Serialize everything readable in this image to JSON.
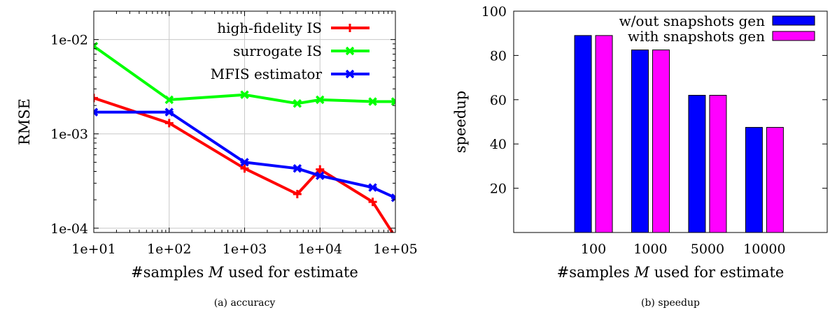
{
  "chart_data": [
    {
      "type": "line",
      "caption": "(a) accuracy",
      "xlabel": "#samples M used for estimate",
      "ylabel": "RMSE",
      "xscale": "log",
      "yscale": "log",
      "xlim": [
        10,
        100000
      ],
      "ylim": [
        9e-05,
        0.02
      ],
      "grid": true,
      "legend_position": "top-right",
      "xticks": [
        10,
        100,
        1000,
        10000,
        100000
      ],
      "xtick_labels": [
        "1e+01",
        "1e+02",
        "1e+03",
        "1e+04",
        "1e+05"
      ],
      "yticks": [
        0.0001,
        0.001,
        0.01
      ],
      "ytick_labels": [
        "1e-04",
        "1e-03",
        "1e-02"
      ],
      "series": [
        {
          "name": "high-fidelity IS",
          "color": "#ff0000",
          "x": [
            10,
            100,
            1000,
            5000,
            10000,
            50000,
            100000
          ],
          "y": [
            0.0024,
            0.0013,
            0.00043,
            0.00023,
            0.00042,
            0.00019,
            8e-05
          ]
        },
        {
          "name": "surrogate IS",
          "color": "#00ff00",
          "x": [
            10,
            100,
            1000,
            5000,
            10000,
            50000,
            100000
          ],
          "y": [
            0.0085,
            0.0023,
            0.0026,
            0.0021,
            0.0023,
            0.0022,
            0.0022
          ]
        },
        {
          "name": "MFIS estimator",
          "color": "#0000ff",
          "x": [
            10,
            100,
            1000,
            5000,
            10000,
            50000,
            100000
          ],
          "y": [
            0.0017,
            0.0017,
            0.0005,
            0.00043,
            0.00036,
            0.00027,
            0.00021
          ]
        }
      ]
    },
    {
      "type": "bar",
      "caption": "(b) speedup",
      "xlabel": "#samples M used for estimate",
      "ylabel": "speedup",
      "ylim": [
        0,
        100
      ],
      "yticks": [
        20,
        40,
        60,
        80,
        100
      ],
      "categories": [
        "100",
        "1000",
        "5000",
        "10000"
      ],
      "legend_position": "top-right",
      "series": [
        {
          "name": "w/out snapshots gen",
          "color": "#0000ff",
          "values": [
            89,
            82.5,
            62,
            47.5
          ]
        },
        {
          "name": "with snapshots gen",
          "color": "#ff00ff",
          "values": [
            89,
            82.5,
            62,
            47.5
          ]
        }
      ]
    }
  ]
}
